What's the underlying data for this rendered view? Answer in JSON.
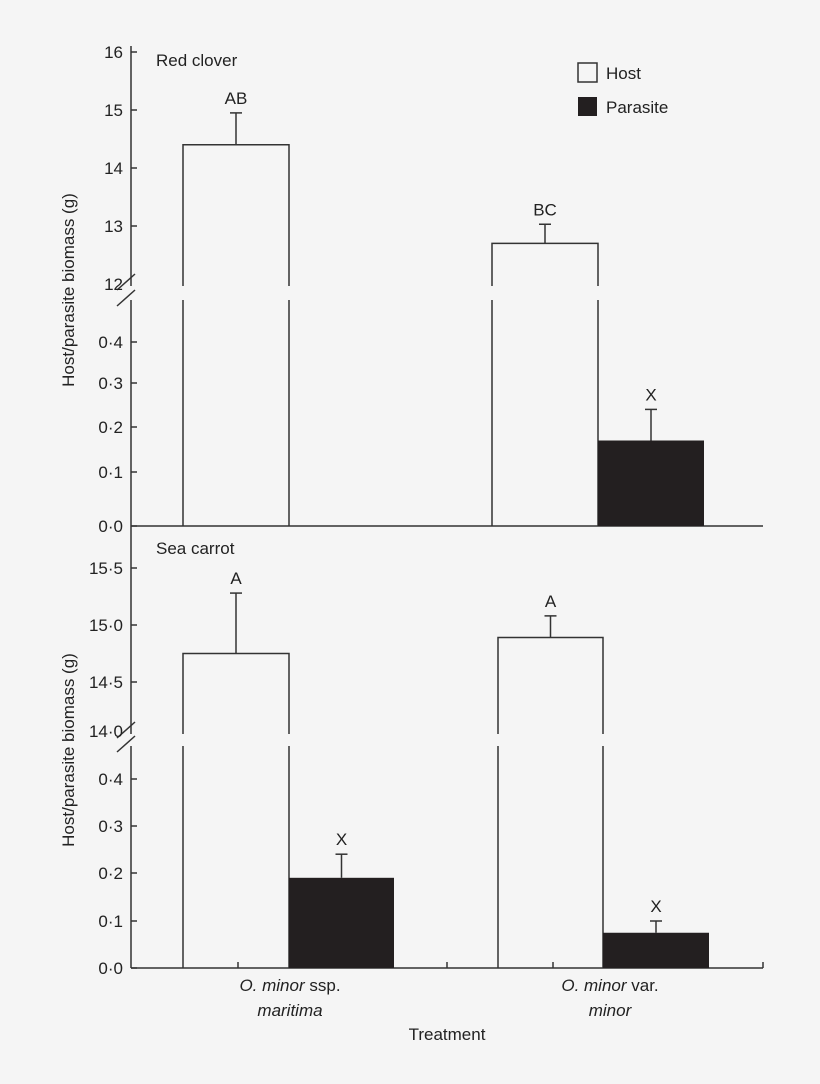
{
  "chart_data": [
    {
      "type": "bar",
      "panel_label": "Red clover",
      "ylabel": "Host/parasite biomass (g)",
      "broken_axis": true,
      "y_upper_ticks": [
        "16",
        "15",
        "14",
        "13",
        "12"
      ],
      "y_lower_ticks": [
        "0·4",
        "0·3",
        "0·2",
        "0·1",
        "0·0"
      ],
      "categories": [
        "O. minor ssp. maritima",
        "O. minor var. minor"
      ],
      "series": [
        {
          "name": "Host",
          "values": [
            14.4,
            12.7
          ],
          "error_upper": [
            14.95,
            13.03
          ],
          "letters": [
            "AB",
            "BC"
          ]
        },
        {
          "name": "Parasite",
          "values": [
            null,
            0.17
          ],
          "error_upper": [
            null,
            0.24
          ],
          "letters": [
            "",
            "X"
          ]
        }
      ]
    },
    {
      "type": "bar",
      "panel_label": "Sea carrot",
      "ylabel": "Host/parasite biomass (g)",
      "broken_axis": true,
      "y_upper_ticks": [
        "15·5",
        "15·0",
        "14·5",
        "14·0"
      ],
      "y_lower_ticks": [
        "0·4",
        "0·3",
        "0·2",
        "0·1",
        "0·0"
      ],
      "categories": [
        "O. minor ssp. maritima",
        "O. minor var. minor"
      ],
      "series": [
        {
          "name": "Host",
          "values": [
            14.75,
            14.89
          ],
          "error_upper": [
            15.28,
            15.08
          ],
          "letters": [
            "A",
            "A"
          ]
        },
        {
          "name": "Parasite",
          "values": [
            0.19,
            0.075
          ],
          "error_upper": [
            0.24,
            0.1
          ],
          "letters": [
            "X",
            "X"
          ]
        }
      ]
    }
  ],
  "legend": {
    "items": [
      {
        "label": "Host",
        "color": "#f5f5f5"
      },
      {
        "label": "Parasite",
        "color": "#231f20"
      }
    ],
    "placement": "top-right"
  },
  "xaxis": {
    "title": "Treatment",
    "groups": [
      {
        "line1_italic": "O. minor",
        "line1_roman": " ssp.",
        "line2_italic": "maritima"
      },
      {
        "line1_italic": "O. minor",
        "line1_roman": " var.",
        "line2_italic": "minor"
      }
    ]
  },
  "colors": {
    "host": "#f5f5f5",
    "parasite": "#231f20",
    "stroke": "#333333"
  }
}
